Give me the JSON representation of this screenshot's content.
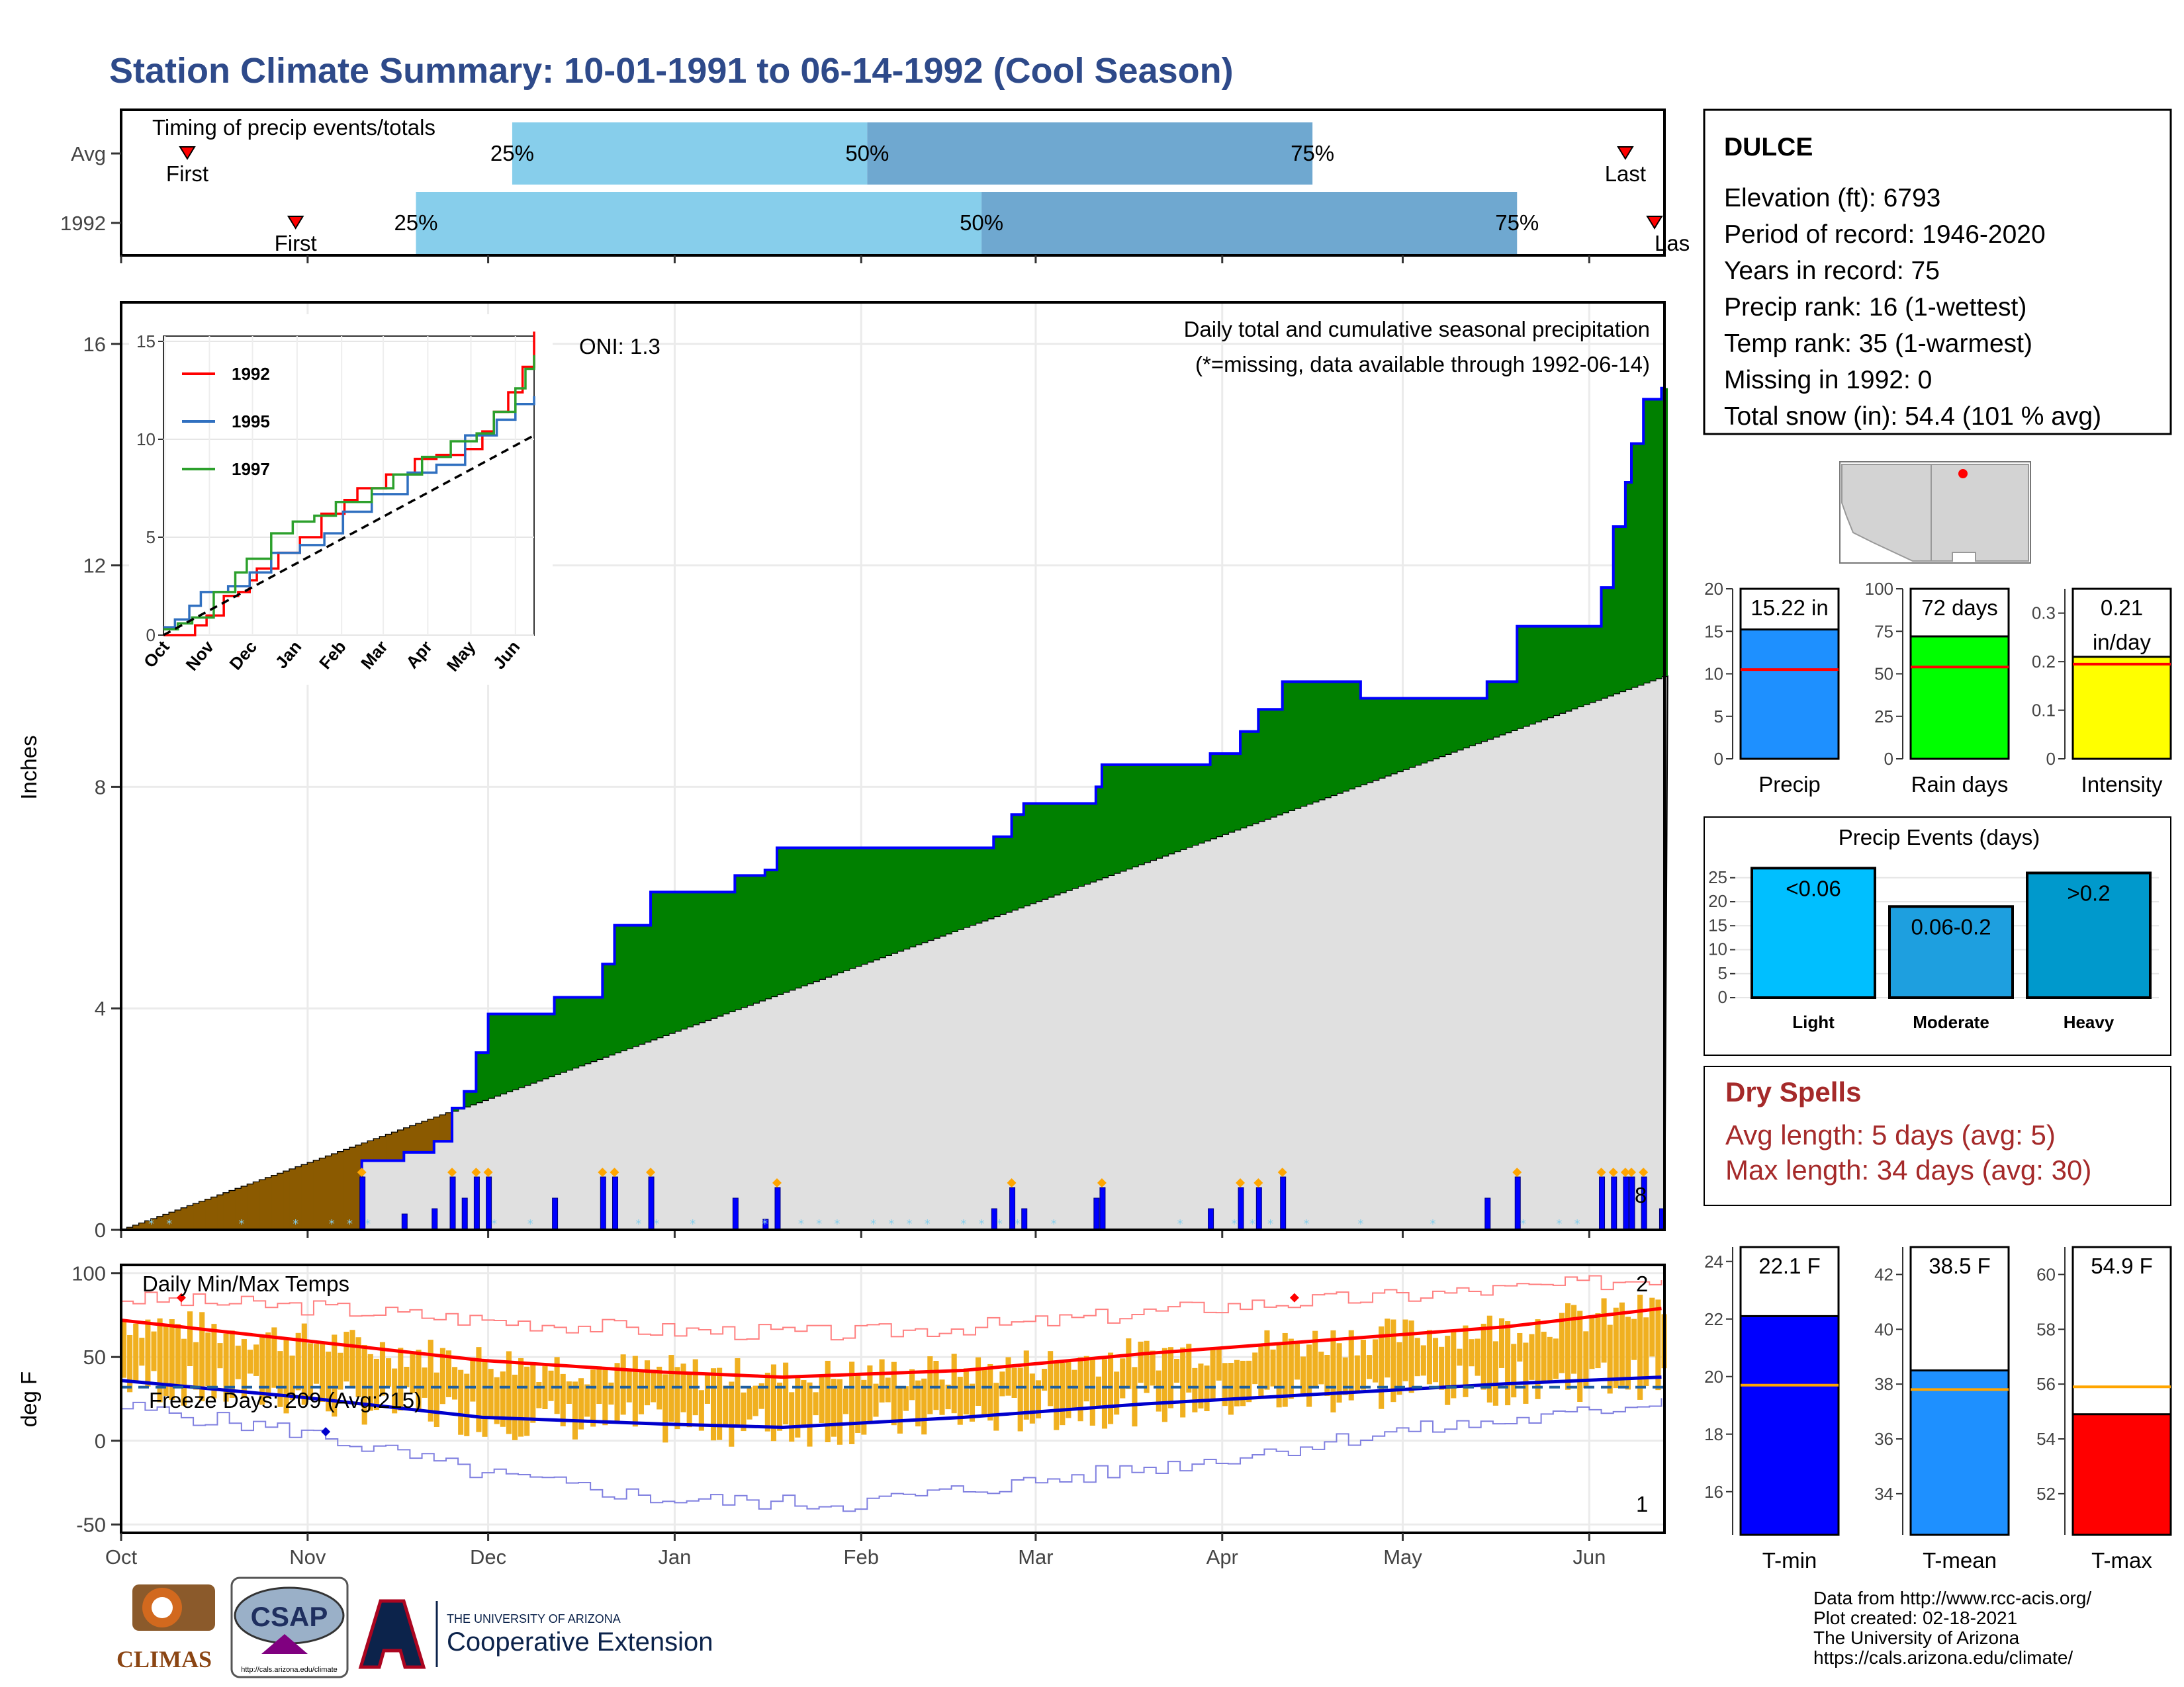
{
  "page": {
    "title": "Station Climate Summary: 10-01-1991 to 06-14-1992 (Cool Season)"
  },
  "colors": {
    "title": "#2e4a8a",
    "precip_above": "#008000",
    "precip_below": "#8b5a00",
    "climo_fill": "#e0e0e0",
    "daily_bar": "#0000ff",
    "tmax_line": "#ff0000",
    "tmin_line": "#0000cc",
    "temp_bar": "#f0b020",
    "freeze": "#1f5f9f",
    "light": "#00bfff",
    "moderate": "#1e9fdf",
    "heavy": "#0099cc",
    "precip_bar": "#1e90ff",
    "rain_bar": "#00ff00",
    "intensity_bar": "#ffff00",
    "tmin_bar": "#0000ff",
    "tmean_bar": "#1e90ff",
    "tmax_bar": "#ff0000",
    "dry": "#a52a2a"
  },
  "chart_data": [
    {
      "type": "bar",
      "name": "timing",
      "title": "Timing of precip events/totals",
      "categories": [
        "Avg",
        "1992"
      ],
      "x_range": [
        "10-01",
        "06-14"
      ],
      "rows": [
        {
          "label": "Avg",
          "first": "10-12",
          "q25": "12-05",
          "q50": "02-02",
          "q75": "04-16",
          "last": "06-07",
          "first_label": "First",
          "last_label": "Last",
          "q25_label": "25%",
          "q50_label": "50%",
          "q75_label": "75%"
        },
        {
          "label": "1992",
          "first": "10-30",
          "q25": "11-19",
          "q50": "02-21",
          "q75": "05-20",
          "last": "06-14",
          "first_label": "First",
          "last_label": "Last",
          "q25_label": "25%",
          "q50_label": "50%",
          "q75_label": "75%"
        }
      ]
    },
    {
      "type": "area",
      "name": "cumulative_precip",
      "title": "Daily total and cumulative seasonal precipitation",
      "subtitle": "(*=missing, data available through 1992-06-14)",
      "oni_label": "ONI: 1.3",
      "ylabel": "Inches",
      "ylim": [
        0,
        16.5
      ],
      "yticks": [
        0,
        4,
        8,
        12,
        16
      ],
      "x_ticks": [
        "Oct",
        "Nov",
        "Dec",
        "Jan",
        "Feb",
        "Mar",
        "Apr",
        "May",
        "Jun"
      ],
      "x_range_days": [
        0,
        256
      ],
      "observed_steps": [
        [
          0,
          0
        ],
        [
          40,
          1.25
        ],
        [
          47,
          1.4
        ],
        [
          52,
          1.6
        ],
        [
          55,
          2.2
        ],
        [
          57,
          2.5
        ],
        [
          59,
          3.2
        ],
        [
          61,
          3.9
        ],
        [
          72,
          4.2
        ],
        [
          80,
          4.8
        ],
        [
          82,
          5.5
        ],
        [
          88,
          6.1
        ],
        [
          102,
          6.4
        ],
        [
          107,
          6.5
        ],
        [
          109,
          6.9
        ],
        [
          145,
          7.1
        ],
        [
          148,
          7.5
        ],
        [
          150,
          7.7
        ],
        [
          162,
          8.0
        ],
        [
          163,
          8.4
        ],
        [
          181,
          8.6
        ],
        [
          186,
          9.0
        ],
        [
          189,
          9.4
        ],
        [
          193,
          9.9
        ],
        [
          206,
          9.6
        ],
        [
          227,
          9.9
        ],
        [
          232,
          10.9
        ],
        [
          246,
          11.6
        ],
        [
          248,
          12.7
        ],
        [
          250,
          13.5
        ],
        [
          251,
          14.2
        ],
        [
          253,
          15.0
        ],
        [
          256,
          15.2
        ]
      ],
      "normal_cumulative_end": 10.0,
      "daily_marker_count_label": "8"
    },
    {
      "type": "line",
      "name": "inset_analogs",
      "ylim": [
        0,
        15
      ],
      "yticks": [
        0,
        5,
        10,
        15
      ],
      "x_ticks": [
        "Oct",
        "Nov",
        "Dec",
        "Jan",
        "Feb",
        "Mar",
        "Apr",
        "May",
        "Jun"
      ],
      "series": [
        {
          "name": "1992",
          "color": "#ff0000",
          "points": [
            [
              0,
              0
            ],
            [
              14,
              0
            ],
            [
              22,
              0.5
            ],
            [
              30,
              1.0
            ],
            [
              42,
              2.0
            ],
            [
              52,
              2.2
            ],
            [
              60,
              2.8
            ],
            [
              65,
              3.4
            ],
            [
              80,
              4.2
            ],
            [
              95,
              5.0
            ],
            [
              110,
              6.2
            ],
            [
              126,
              6.9
            ],
            [
              135,
              7.5
            ],
            [
              155,
              8.2
            ],
            [
              175,
              9.0
            ],
            [
              190,
              9.2
            ],
            [
              210,
              9.5
            ],
            [
              222,
              10.4
            ],
            [
              230,
              11.4
            ],
            [
              240,
              12.4
            ],
            [
              250,
              13.7
            ],
            [
              258,
              15.5
            ]
          ]
        },
        {
          "name": "1995",
          "color": "#3070c0",
          "points": [
            [
              0,
              0.4
            ],
            [
              8,
              0.8
            ],
            [
              18,
              1.5
            ],
            [
              26,
              2.2
            ],
            [
              45,
              2.5
            ],
            [
              60,
              3.2
            ],
            [
              75,
              4.2
            ],
            [
              95,
              4.6
            ],
            [
              112,
              5.2
            ],
            [
              125,
              6.3
            ],
            [
              145,
              7.2
            ],
            [
              170,
              8.3
            ],
            [
              190,
              8.7
            ],
            [
              210,
              10.2
            ],
            [
              232,
              11.0
            ],
            [
              245,
              11.8
            ],
            [
              258,
              12.2
            ]
          ]
        },
        {
          "name": "1997",
          "color": "#2ca02c",
          "points": [
            [
              0,
              0.3
            ],
            [
              10,
              0.6
            ],
            [
              20,
              0.9
            ],
            [
              35,
              2.2
            ],
            [
              50,
              3.2
            ],
            [
              58,
              3.9
            ],
            [
              75,
              5.2
            ],
            [
              90,
              5.8
            ],
            [
              105,
              6.1
            ],
            [
              120,
              6.8
            ],
            [
              145,
              7.5
            ],
            [
              160,
              8.2
            ],
            [
              180,
              9.1
            ],
            [
              200,
              9.9
            ],
            [
              218,
              10.3
            ],
            [
              230,
              11.4
            ],
            [
              245,
              12.6
            ],
            [
              252,
              13.6
            ],
            [
              258,
              14.3
            ]
          ]
        },
        {
          "name": "normal",
          "color": "#000000",
          "dash": true,
          "points": [
            [
              0,
              0
            ],
            [
              258,
              10.2
            ]
          ]
        }
      ]
    },
    {
      "type": "line",
      "name": "temps",
      "title": "Daily Min/Max Temps",
      "ylabel": "deg F",
      "ylim": [
        -55,
        105
      ],
      "yticks": [
        -50,
        0,
        50,
        100
      ],
      "x_ticks": [
        "Oct",
        "Nov",
        "Dec",
        "Jan",
        "Feb",
        "Mar",
        "Apr",
        "May",
        "Jun"
      ],
      "freeze_label": "Freeze Days: 209 (Avg:215)",
      "freeze_line": 32,
      "record_high_count": "2",
      "record_low_count": "1",
      "normal_max": [
        [
          0,
          72
        ],
        [
          30,
          60
        ],
        [
          60,
          48
        ],
        [
          90,
          41
        ],
        [
          110,
          38
        ],
        [
          140,
          42
        ],
        [
          170,
          52
        ],
        [
          200,
          60
        ],
        [
          230,
          68
        ],
        [
          256,
          79
        ]
      ],
      "normal_min": [
        [
          0,
          36
        ],
        [
          30,
          26
        ],
        [
          60,
          14
        ],
        [
          90,
          10
        ],
        [
          110,
          8
        ],
        [
          140,
          14
        ],
        [
          170,
          22
        ],
        [
          200,
          28
        ],
        [
          230,
          34
        ],
        [
          256,
          38
        ]
      ],
      "extreme_max": [
        [
          0,
          85
        ],
        [
          30,
          80
        ],
        [
          60,
          72
        ],
        [
          90,
          66
        ],
        [
          120,
          64
        ],
        [
          150,
          70
        ],
        [
          180,
          80
        ],
        [
          210,
          86
        ],
        [
          240,
          93
        ],
        [
          256,
          98
        ]
      ],
      "extreme_min": [
        [
          0,
          20
        ],
        [
          30,
          5
        ],
        [
          60,
          -20
        ],
        [
          90,
          -35
        ],
        [
          120,
          -38
        ],
        [
          150,
          -25
        ],
        [
          180,
          -12
        ],
        [
          210,
          5
        ],
        [
          240,
          15
        ],
        [
          256,
          25
        ]
      ]
    },
    {
      "type": "bar",
      "name": "precip_total",
      "categories": [
        "Precip"
      ],
      "values": [
        15.22
      ],
      "normal": 10.5,
      "ylim": [
        0,
        20
      ],
      "yticks": [
        0,
        5,
        10,
        15,
        20
      ],
      "value_label": "15.22 in"
    },
    {
      "type": "bar",
      "name": "rain_days",
      "categories": [
        "Rain days"
      ],
      "values": [
        72
      ],
      "normal": 54,
      "ylim": [
        0,
        100
      ],
      "yticks": [
        0,
        25,
        50,
        75,
        100
      ],
      "value_label": "72 days"
    },
    {
      "type": "bar",
      "name": "intensity",
      "categories": [
        "Intensity"
      ],
      "values": [
        0.21
      ],
      "normal": 0.195,
      "ylim": [
        0,
        0.35
      ],
      "yticks": [
        0.0,
        0.1,
        0.2,
        0.3
      ],
      "value_label_1": "0.21",
      "value_label_2": "in/day"
    },
    {
      "type": "bar",
      "name": "precip_events",
      "title": "Precip Events (days)",
      "categories": [
        "Light",
        "Moderate",
        "Heavy"
      ],
      "values": [
        27,
        19,
        26
      ],
      "bar_labels": [
        "<0.06",
        "0.06-0.2",
        ">0.2"
      ],
      "ylim": [
        0,
        28
      ],
      "yticks": [
        0,
        5,
        10,
        15,
        20,
        25
      ]
    },
    {
      "type": "bar",
      "name": "tmin",
      "categories": [
        "T-min"
      ],
      "values": [
        22.1
      ],
      "normal": 19.7,
      "ylim": [
        14.5,
        24.5
      ],
      "yticks": [
        16,
        18,
        20,
        22,
        24
      ],
      "value_label": "22.1 F"
    },
    {
      "type": "bar",
      "name": "tmean",
      "categories": [
        "T-mean"
      ],
      "values": [
        38.5
      ],
      "normal": 37.8,
      "ylim": [
        32.5,
        43
      ],
      "yticks": [
        34,
        36,
        38,
        40,
        42
      ],
      "value_label": "38.5 F"
    },
    {
      "type": "bar",
      "name": "tmax",
      "categories": [
        "T-max"
      ],
      "values": [
        54.9
      ],
      "normal": 55.9,
      "ylim": [
        50.5,
        61
      ],
      "yticks": [
        52,
        54,
        56,
        58,
        60
      ],
      "value_label": "54.9 F"
    }
  ],
  "station": {
    "name": "DULCE",
    "lines": [
      "Elevation (ft): 6793",
      "Period of record: 1946-2020",
      "Years in record: 75",
      "Precip rank: 16 (1-wettest)",
      "Temp rank: 35 (1-warmest)",
      "Missing in 1992: 0",
      "Total snow (in): 54.4 (101 % avg)"
    ]
  },
  "dry_spells": {
    "title": "Dry Spells",
    "avg_length": "Avg length: 5 days (avg: 5)",
    "max_length": "Max length: 34 days (avg: 30)"
  },
  "footer": {
    "credits": [
      "Data from http://www.rcc-acis.org/",
      "Plot created: 02-18-2021",
      "The University of Arizona",
      "https://cals.arizona.edu/climate/"
    ],
    "logo_climas": "CLIMAS",
    "logo_csap": "CSAP",
    "logo_csap_url": "http://cals.arizona.edu/climate",
    "logo_ua_small": "THE UNIVERSITY OF ARIZONA",
    "logo_ua_big": "Cooperative Extension"
  }
}
